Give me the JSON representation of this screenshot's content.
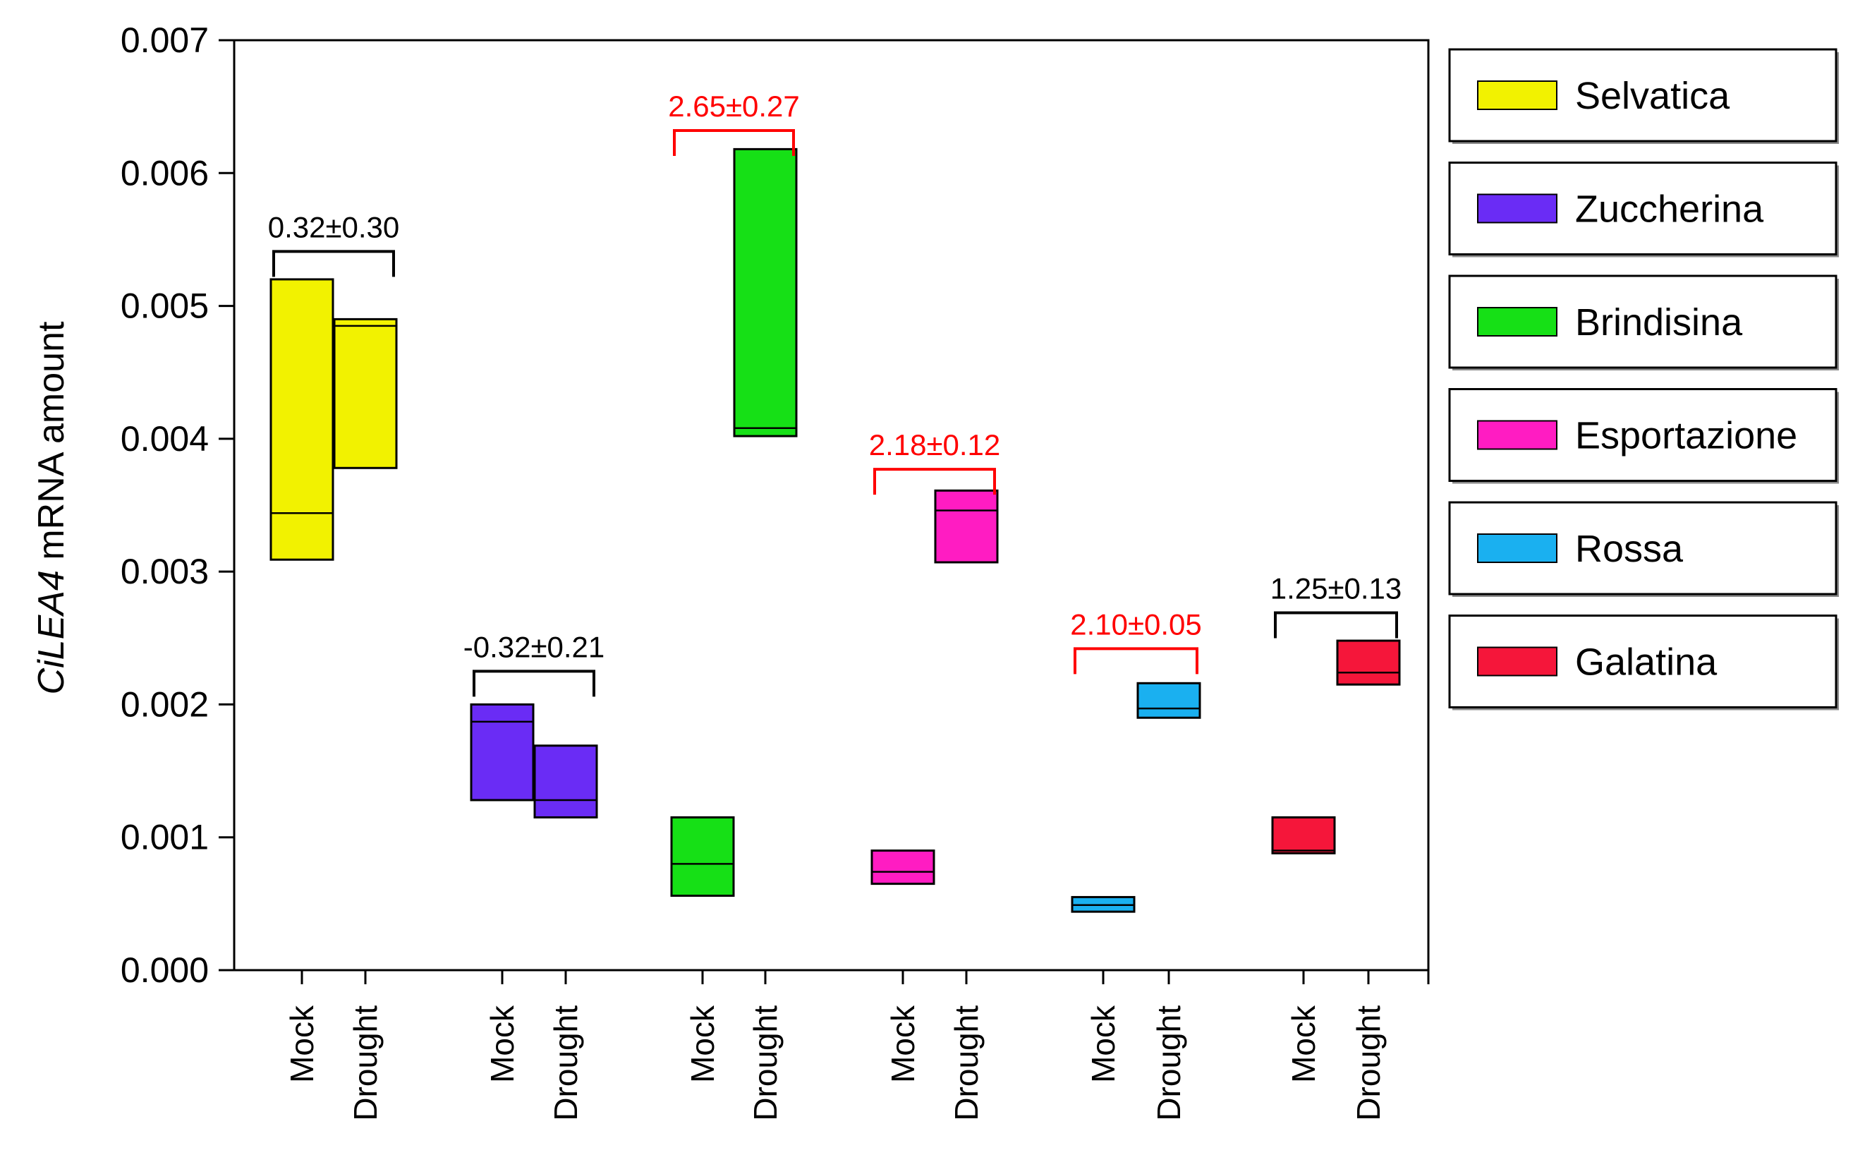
{
  "chart_data": {
    "type": "floating-bar",
    "ylabel": {
      "italic": "CiLEA4",
      "rest": " mRNA amount"
    },
    "ylim": [
      0,
      0.007
    ],
    "yticks": [
      "0.000",
      "0.001",
      "0.002",
      "0.003",
      "0.004",
      "0.005",
      "0.006",
      "0.007"
    ],
    "conditions": [
      "Mock",
      "Drought"
    ],
    "groups": [
      {
        "name": "Selvatica",
        "color": "#f2f200",
        "mock": {
          "low": 0.00309,
          "high": 0.0052,
          "mid": 0.00344
        },
        "drought": {
          "low": 0.00378,
          "high": 0.0049,
          "mid": 0.00485
        },
        "annotation": "0.32±0.30",
        "annotation_color": "#000000",
        "bracket_y": 0.00541
      },
      {
        "name": "Zuccherina",
        "color": "#6a2cf5",
        "mock": {
          "low": 0.00128,
          "high": 0.002,
          "mid": 0.00187
        },
        "drought": {
          "low": 0.00115,
          "high": 0.00169,
          "mid": 0.00128
        },
        "annotation": "-0.32±0.21",
        "annotation_color": "#000000",
        "bracket_y": 0.00225
      },
      {
        "name": "Brindisina",
        "color": "#16e016",
        "mock": {
          "low": 0.00056,
          "high": 0.00115,
          "mid": 0.0008
        },
        "drought": {
          "low": 0.00402,
          "high": 0.00618,
          "mid": 0.00408
        },
        "annotation": "2.65±0.27",
        "annotation_color": "#ff0000",
        "bracket_y": 0.00632
      },
      {
        "name": "Esportazione",
        "color": "#ff1cc2",
        "mock": {
          "low": 0.00065,
          "high": 0.0009,
          "mid": 0.00074
        },
        "drought": {
          "low": 0.00307,
          "high": 0.00361,
          "mid": 0.00346
        },
        "annotation": "2.18±0.12",
        "annotation_color": "#ff0000",
        "bracket_y": 0.00377
      },
      {
        "name": "Rossa",
        "color": "#1ab0f0",
        "mock": {
          "low": 0.00044,
          "high": 0.00055,
          "mid": 0.00049
        },
        "drought": {
          "low": 0.0019,
          "high": 0.00216,
          "mid": 0.00197
        },
        "annotation": "2.10±0.05",
        "annotation_color": "#ff0000",
        "bracket_y": 0.00242
      },
      {
        "name": "Galatina",
        "color": "#f5163a",
        "mock": {
          "low": 0.00088,
          "high": 0.00115,
          "mid": 0.0009
        },
        "drought": {
          "low": 0.00215,
          "high": 0.00248,
          "mid": 0.00224
        },
        "annotation": "1.25±0.13",
        "annotation_color": "#000000",
        "bracket_y": 0.00269
      }
    ],
    "legend": {
      "placement": "right"
    }
  }
}
